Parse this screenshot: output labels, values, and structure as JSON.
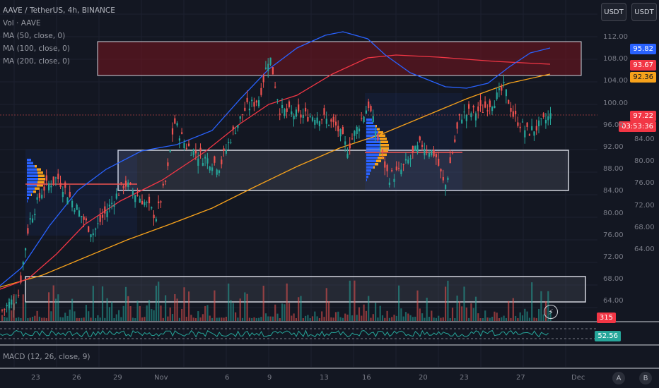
{
  "legend": {
    "symbol": "AAVE / TetherUS, 4h, BINANCE",
    "vol": "Vol · AAVE",
    "ma50": "MA (50, close, 0)",
    "ma100": "MA (100, close, 0)",
    "ma200": "MA (200, close, 0)"
  },
  "toolbar": {
    "currency_left": "USDT",
    "currency_right": "USDT"
  },
  "price_axis": {
    "ticks": [
      "112.00",
      "108.00",
      "104.00",
      "100.00",
      "96.00",
      "92.00",
      "88.00",
      "84.00",
      "80.00",
      "76.00",
      "72.00",
      "68.00",
      "64.00"
    ],
    "right_ticks": [
      "84.00",
      "80.00",
      "76.00",
      "72.00",
      "68.00",
      "64.00"
    ]
  },
  "tags": {
    "ma100": "95.82",
    "ma50": "93.67",
    "ma200": "92.36",
    "last_price": "97.22",
    "countdown": "03:53:36",
    "volume": "315",
    "rsi": "52.56"
  },
  "time_axis": [
    "23",
    "26",
    "29",
    "Nov",
    "6",
    "9",
    "13",
    "16",
    "20",
    "23",
    "27",
    "Dec"
  ],
  "macd_label": "MACD (12, 26, close, 9)",
  "corner_buttons": {
    "auto": "A",
    "log": "B"
  },
  "colors": {
    "bg": "#131722",
    "up": "#26a69a",
    "down": "#ef5350",
    "ma50": "#f23645",
    "ma100": "#2962ff",
    "ma200": "#f7a21b",
    "rsi": "#26a69a"
  },
  "chart_data": {
    "type": "candlestick",
    "title": "AAVE / TetherUS, 4h, BINANCE",
    "y_ticks": [
      112,
      108,
      104,
      100,
      96,
      92,
      88,
      84,
      80,
      76,
      72,
      68,
      64
    ],
    "x_ticks": [
      "23",
      "26",
      "29",
      "Nov",
      "6",
      "9",
      "13",
      "16",
      "20",
      "23",
      "27",
      "Dec"
    ],
    "last_price": 97.22,
    "ma_values": {
      "ma50": 93.67,
      "ma100": 95.82,
      "ma200": 92.36
    },
    "volume_last": 315,
    "rsi_last": 52.56,
    "grid": true
  }
}
